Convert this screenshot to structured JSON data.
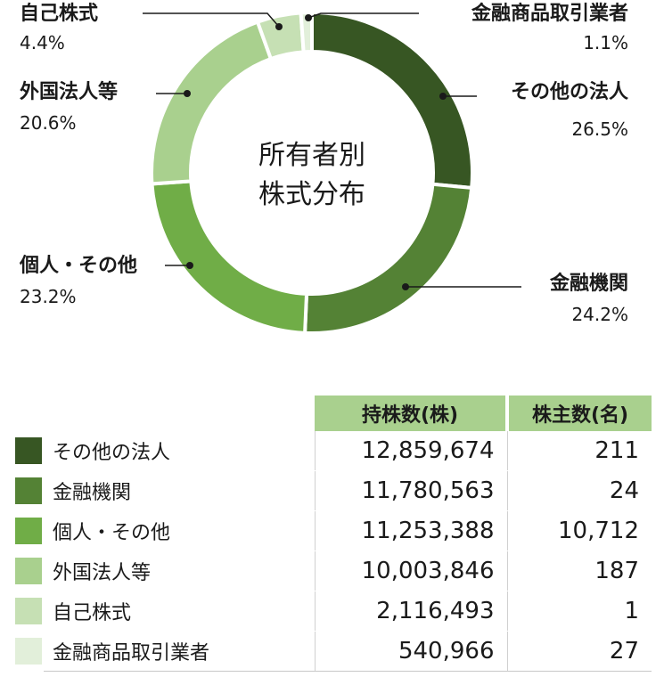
{
  "chart_data": {
    "type": "donut",
    "center_label": [
      "所有者別",
      "株式分布"
    ],
    "slices": [
      {
        "name": "その他の法人",
        "pct_label": "26.5%",
        "value": 26.5,
        "color": "#375623"
      },
      {
        "name": "金融機関",
        "pct_label": "24.2%",
        "value": 24.2,
        "color": "#548235"
      },
      {
        "name": "個人・その他",
        "pct_label": "23.2%",
        "value": 23.2,
        "color": "#70ad47"
      },
      {
        "name": "外国法人等",
        "pct_label": "20.6%",
        "value": 20.6,
        "color": "#a9d08e"
      },
      {
        "name": "自己株式",
        "pct_label": "4.4%",
        "value": 4.4,
        "color": "#c6e0b4"
      },
      {
        "name": "金融商品取引業者",
        "pct_label": "1.1%",
        "value": 1.1,
        "color": "#e2efda"
      }
    ]
  },
  "table": {
    "headers": [
      "持株数(株)",
      "株主数(名)"
    ],
    "rows": [
      {
        "name": "その他の法人",
        "shares": "12,859,674",
        "holders": "211"
      },
      {
        "name": "金融機関",
        "shares": "11,780,563",
        "holders": "24"
      },
      {
        "name": "個人・その他",
        "shares": "11,253,388",
        "holders": "10,712"
      },
      {
        "name": "外国法人等",
        "shares": "10,003,846",
        "holders": "187"
      },
      {
        "name": "自己株式",
        "shares": "2,116,493",
        "holders": "1"
      },
      {
        "name": "金融商品取引業者",
        "shares": "540,966",
        "holders": "27"
      }
    ]
  }
}
